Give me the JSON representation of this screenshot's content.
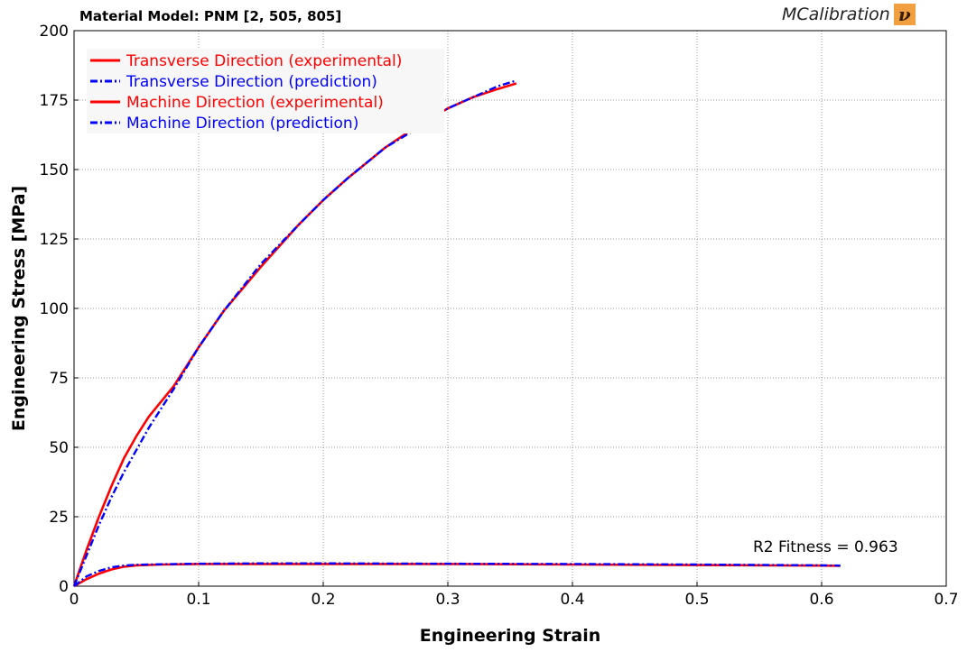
{
  "header": {
    "title": "Material Model: PNM [2, 505, 805]",
    "brand": "MCalibration",
    "brand_logo_glyph": "ν",
    "brand_logo_color": "#F0A040"
  },
  "colors": {
    "experimental": "#FF0000",
    "prediction": "#0000FF"
  },
  "chart_data": {
    "type": "line",
    "title": "Material Model: PNM [2, 505, 805]",
    "xlabel": "Engineering Strain",
    "ylabel": "Engineering Stress [MPa]",
    "xlim": [
      0,
      0.7
    ],
    "ylim": [
      0,
      200
    ],
    "xticks": [
      0,
      0.1,
      0.2,
      0.3,
      0.4,
      0.5,
      0.6,
      0.7
    ],
    "yticks": [
      0,
      25,
      50,
      75,
      100,
      125,
      150,
      175,
      200
    ],
    "grid": true,
    "legend_position": "top-left",
    "annotation": "R2 Fitness = 0.963",
    "series": [
      {
        "name": "Transverse Direction (experimental)",
        "style": "solid",
        "color": "#FF0000",
        "x": [
          0,
          0.01,
          0.02,
          0.03,
          0.04,
          0.05,
          0.06,
          0.08,
          0.1,
          0.12,
          0.15,
          0.18,
          0.2,
          0.22,
          0.25,
          0.28,
          0.3,
          0.32,
          0.34,
          0.355
        ],
        "y": [
          0,
          13,
          25,
          36,
          46,
          54,
          61,
          72,
          86,
          99,
          115,
          130,
          139,
          147,
          158,
          167,
          172,
          176,
          179,
          181
        ]
      },
      {
        "name": "Transverse Direction (prediction)",
        "style": "dashdot",
        "color": "#0000FF",
        "x": [
          0,
          0.01,
          0.02,
          0.03,
          0.04,
          0.05,
          0.06,
          0.08,
          0.1,
          0.12,
          0.15,
          0.18,
          0.2,
          0.22,
          0.25,
          0.28,
          0.3,
          0.32,
          0.34,
          0.355
        ],
        "y": [
          0,
          11,
          22,
          32,
          41,
          49,
          57,
          71,
          86,
          99,
          116,
          130,
          139,
          147,
          158,
          166,
          172,
          176,
          180,
          182
        ]
      },
      {
        "name": "Machine Direction (experimental)",
        "style": "solid",
        "color": "#FF0000",
        "x": [
          0,
          0.01,
          0.02,
          0.03,
          0.04,
          0.05,
          0.07,
          0.1,
          0.15,
          0.2,
          0.3,
          0.4,
          0.5,
          0.6,
          0.615
        ],
        "y": [
          0,
          2.5,
          4.5,
          6,
          7,
          7.5,
          7.8,
          8,
          8,
          8,
          8,
          7.8,
          7.6,
          7.4,
          7.3
        ]
      },
      {
        "name": "Machine Direction (prediction)",
        "style": "dashdot",
        "color": "#0000FF",
        "x": [
          0,
          0.01,
          0.02,
          0.03,
          0.04,
          0.05,
          0.07,
          0.1,
          0.15,
          0.2,
          0.3,
          0.4,
          0.5,
          0.6,
          0.615
        ],
        "y": [
          0,
          3.5,
          5.5,
          6.8,
          7.4,
          7.7,
          7.9,
          8.1,
          8.2,
          8.2,
          8.1,
          8,
          7.8,
          7.5,
          7.4
        ]
      }
    ]
  }
}
